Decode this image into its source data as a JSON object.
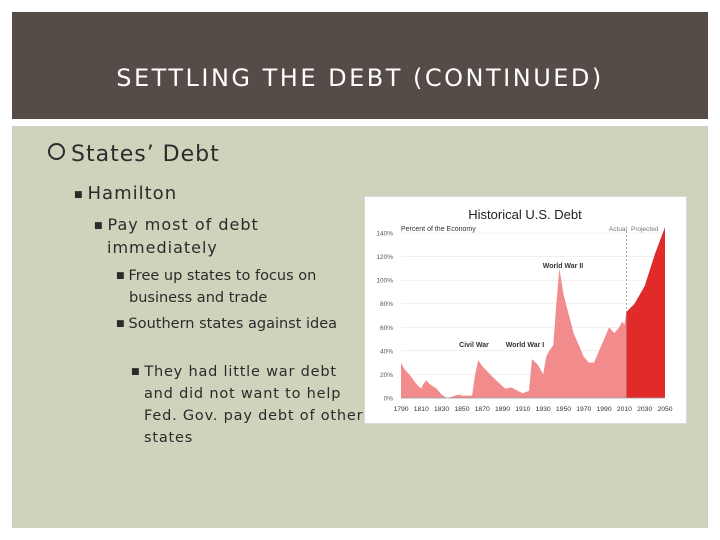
{
  "slide": {
    "title": "SETTLING THE DEBT (CONTINUED)",
    "bullets": {
      "level1": "States’ Debt",
      "level2": "Hamilton",
      "level3": "Pay most of debt immediately",
      "level4": [
        "Free up states to focus on business and trade",
        "Southern states against idea"
      ],
      "level5": "They had little war debt and did not want to help Fed. Gov. pay debt of other states"
    }
  },
  "colors": {
    "title_bar": "#554b47",
    "content_bg": "#cfd3bc",
    "actual_fill": "#f28b8b",
    "projected_fill": "#e12b2b"
  },
  "chart_data": {
    "type": "area",
    "title": "Historical U.S. Debt",
    "ylabel": "Percent of the Economy",
    "yticks": [
      "0%",
      "20%",
      "40%",
      "60%",
      "80%",
      "100%",
      "120%",
      "140%"
    ],
    "ylim": [
      0,
      140
    ],
    "xticks": [
      "1790",
      "1810",
      "1830",
      "1850",
      "1870",
      "1890",
      "1910",
      "1930",
      "1950",
      "1970",
      "1990",
      "2010",
      "2030",
      "2050"
    ],
    "xlim": [
      1790,
      2050
    ],
    "legend": [
      "Actual",
      "Projected"
    ],
    "annotations": [
      "World War II",
      "Civil War",
      "World War I"
    ],
    "series": [
      {
        "name": "Actual",
        "x": [
          1790,
          1793,
          1800,
          1805,
          1810,
          1812,
          1815,
          1818,
          1825,
          1830,
          1835,
          1840,
          1843,
          1848,
          1850,
          1857,
          1860,
          1863,
          1866,
          1870,
          1880,
          1890,
          1893,
          1899,
          1905,
          1910,
          1916,
          1919,
          1925,
          1930,
          1933,
          1936,
          1940,
          1943,
          1946,
          1950,
          1960,
          1970,
          1975,
          1980,
          1985,
          1990,
          1995,
          2000,
          2005,
          2008,
          2010,
          2012
        ],
        "y": [
          30,
          25,
          18,
          12,
          8,
          12,
          15,
          12,
          8,
          3,
          0,
          1,
          2,
          3,
          2,
          2,
          2,
          20,
          32,
          27,
          18,
          10,
          8,
          9,
          6,
          4,
          6,
          33,
          28,
          20,
          35,
          40,
          45,
          80,
          110,
          88,
          55,
          35,
          30,
          30,
          40,
          50,
          60,
          55,
          60,
          65,
          62,
          73
        ]
      },
      {
        "name": "Projected",
        "x": [
          2012,
          2020,
          2030,
          2040,
          2050
        ],
        "y": [
          73,
          80,
          95,
          122,
          145
        ]
      }
    ]
  }
}
